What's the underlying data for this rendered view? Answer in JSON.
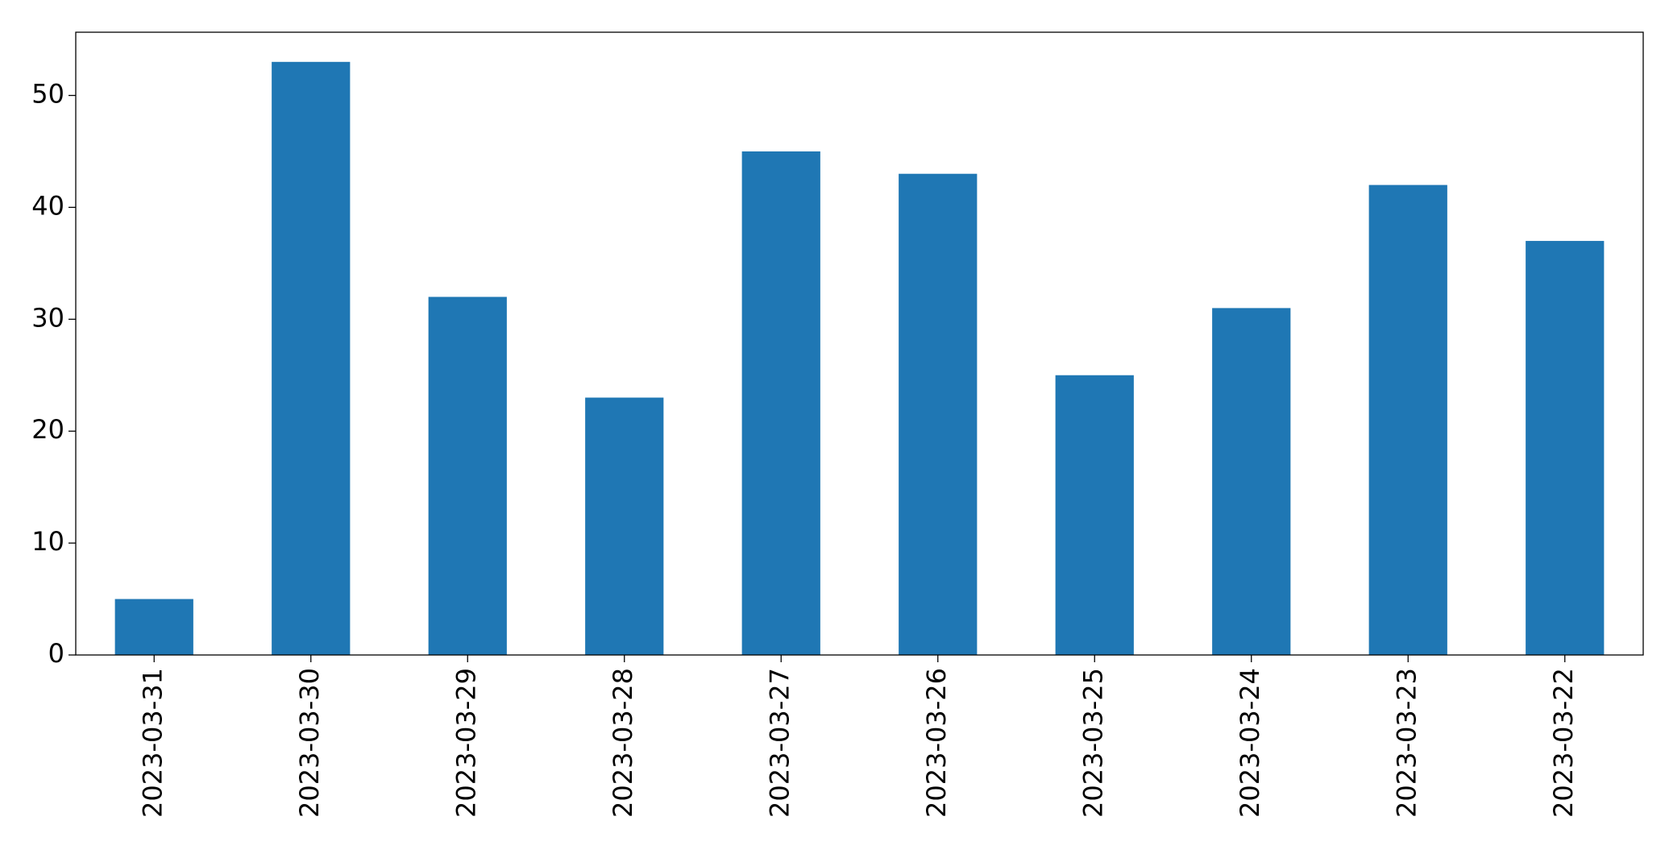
{
  "chart_data": {
    "type": "bar",
    "categories": [
      "2023-03-31",
      "2023-03-30",
      "2023-03-29",
      "2023-03-28",
      "2023-03-27",
      "2023-03-26",
      "2023-03-25",
      "2023-03-24",
      "2023-03-23",
      "2023-03-22"
    ],
    "values": [
      5,
      53,
      32,
      23,
      45,
      43,
      25,
      31,
      42,
      37
    ],
    "color": "#1f77b4",
    "ylim": [
      0,
      55.65
    ],
    "yticks": [
      0,
      10,
      20,
      30,
      40,
      50
    ],
    "grid": false
  }
}
